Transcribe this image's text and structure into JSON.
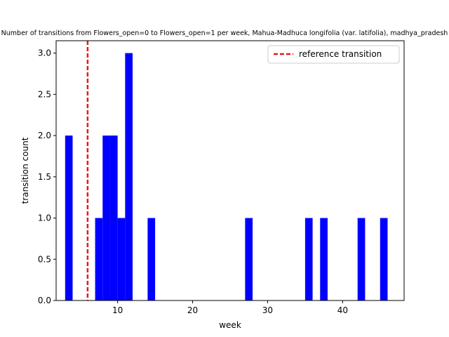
{
  "chart_data": {
    "type": "bar",
    "title": "Number of transitions from Flowers_open=0 to Flowers_open=1 per week, Mahua-Madhuca longifolia (var. latifolia), madhya_pradesh",
    "xlabel": "week",
    "ylabel": "transition count",
    "xlim": [
      1.8,
      48.2
    ],
    "ylim": [
      0,
      3.15
    ],
    "xticks": [
      10,
      20,
      30,
      40
    ],
    "yticks": [
      0.0,
      0.5,
      1.0,
      1.5,
      2.0,
      2.5,
      3.0
    ],
    "ytick_labels": [
      "0.0",
      "0.5",
      "1.0",
      "1.5",
      "2.0",
      "2.5",
      "3.0"
    ],
    "bar_width": 1,
    "bars": [
      {
        "x": 3,
        "value": 2
      },
      {
        "x": 7,
        "value": 1
      },
      {
        "x": 8,
        "value": 2
      },
      {
        "x": 9,
        "value": 2
      },
      {
        "x": 10,
        "value": 1
      },
      {
        "x": 11,
        "value": 3
      },
      {
        "x": 14,
        "value": 1
      },
      {
        "x": 27,
        "value": 1
      },
      {
        "x": 35,
        "value": 1
      },
      {
        "x": 37,
        "value": 1
      },
      {
        "x": 42,
        "value": 1
      },
      {
        "x": 45,
        "value": 1
      }
    ],
    "bar_color": "#0000ff",
    "reference_line": {
      "x": 6,
      "label": "reference transition",
      "color": "#e31a1c",
      "style": "dashed"
    },
    "legend_position": "top-right",
    "grid": false
  }
}
